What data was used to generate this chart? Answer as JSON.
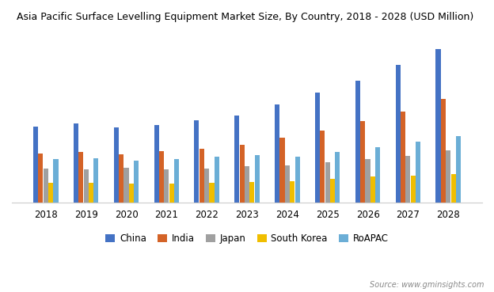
{
  "title": "Asia Pacific Surface Levelling Equipment Market Size, By Country, 2018 - 2028 (USD Million)",
  "years": [
    2018,
    2019,
    2020,
    2021,
    2022,
    2023,
    2024,
    2025,
    2026,
    2027,
    2028
  ],
  "series": {
    "China": [
      185,
      192,
      182,
      188,
      200,
      212,
      240,
      268,
      298,
      335,
      375
    ],
    "India": [
      120,
      123,
      118,
      124,
      130,
      140,
      158,
      175,
      198,
      222,
      252
    ],
    "Japan": [
      82,
      80,
      84,
      80,
      82,
      88,
      90,
      98,
      105,
      113,
      126
    ],
    "South Korea": [
      48,
      48,
      46,
      46,
      48,
      50,
      52,
      57,
      62,
      64,
      68
    ],
    "RoAPAC": [
      105,
      108,
      102,
      106,
      112,
      116,
      112,
      122,
      134,
      148,
      162
    ]
  },
  "colors": {
    "China": "#4472c4",
    "India": "#d46327",
    "Japan": "#a0a0a0",
    "South Korea": "#f0be00",
    "RoAPAC": "#6baed6"
  },
  "source": "Source: www.gminsights.com",
  "background_color": "#ffffff",
  "title_fontsize": 9,
  "axis_fontsize": 8.5
}
